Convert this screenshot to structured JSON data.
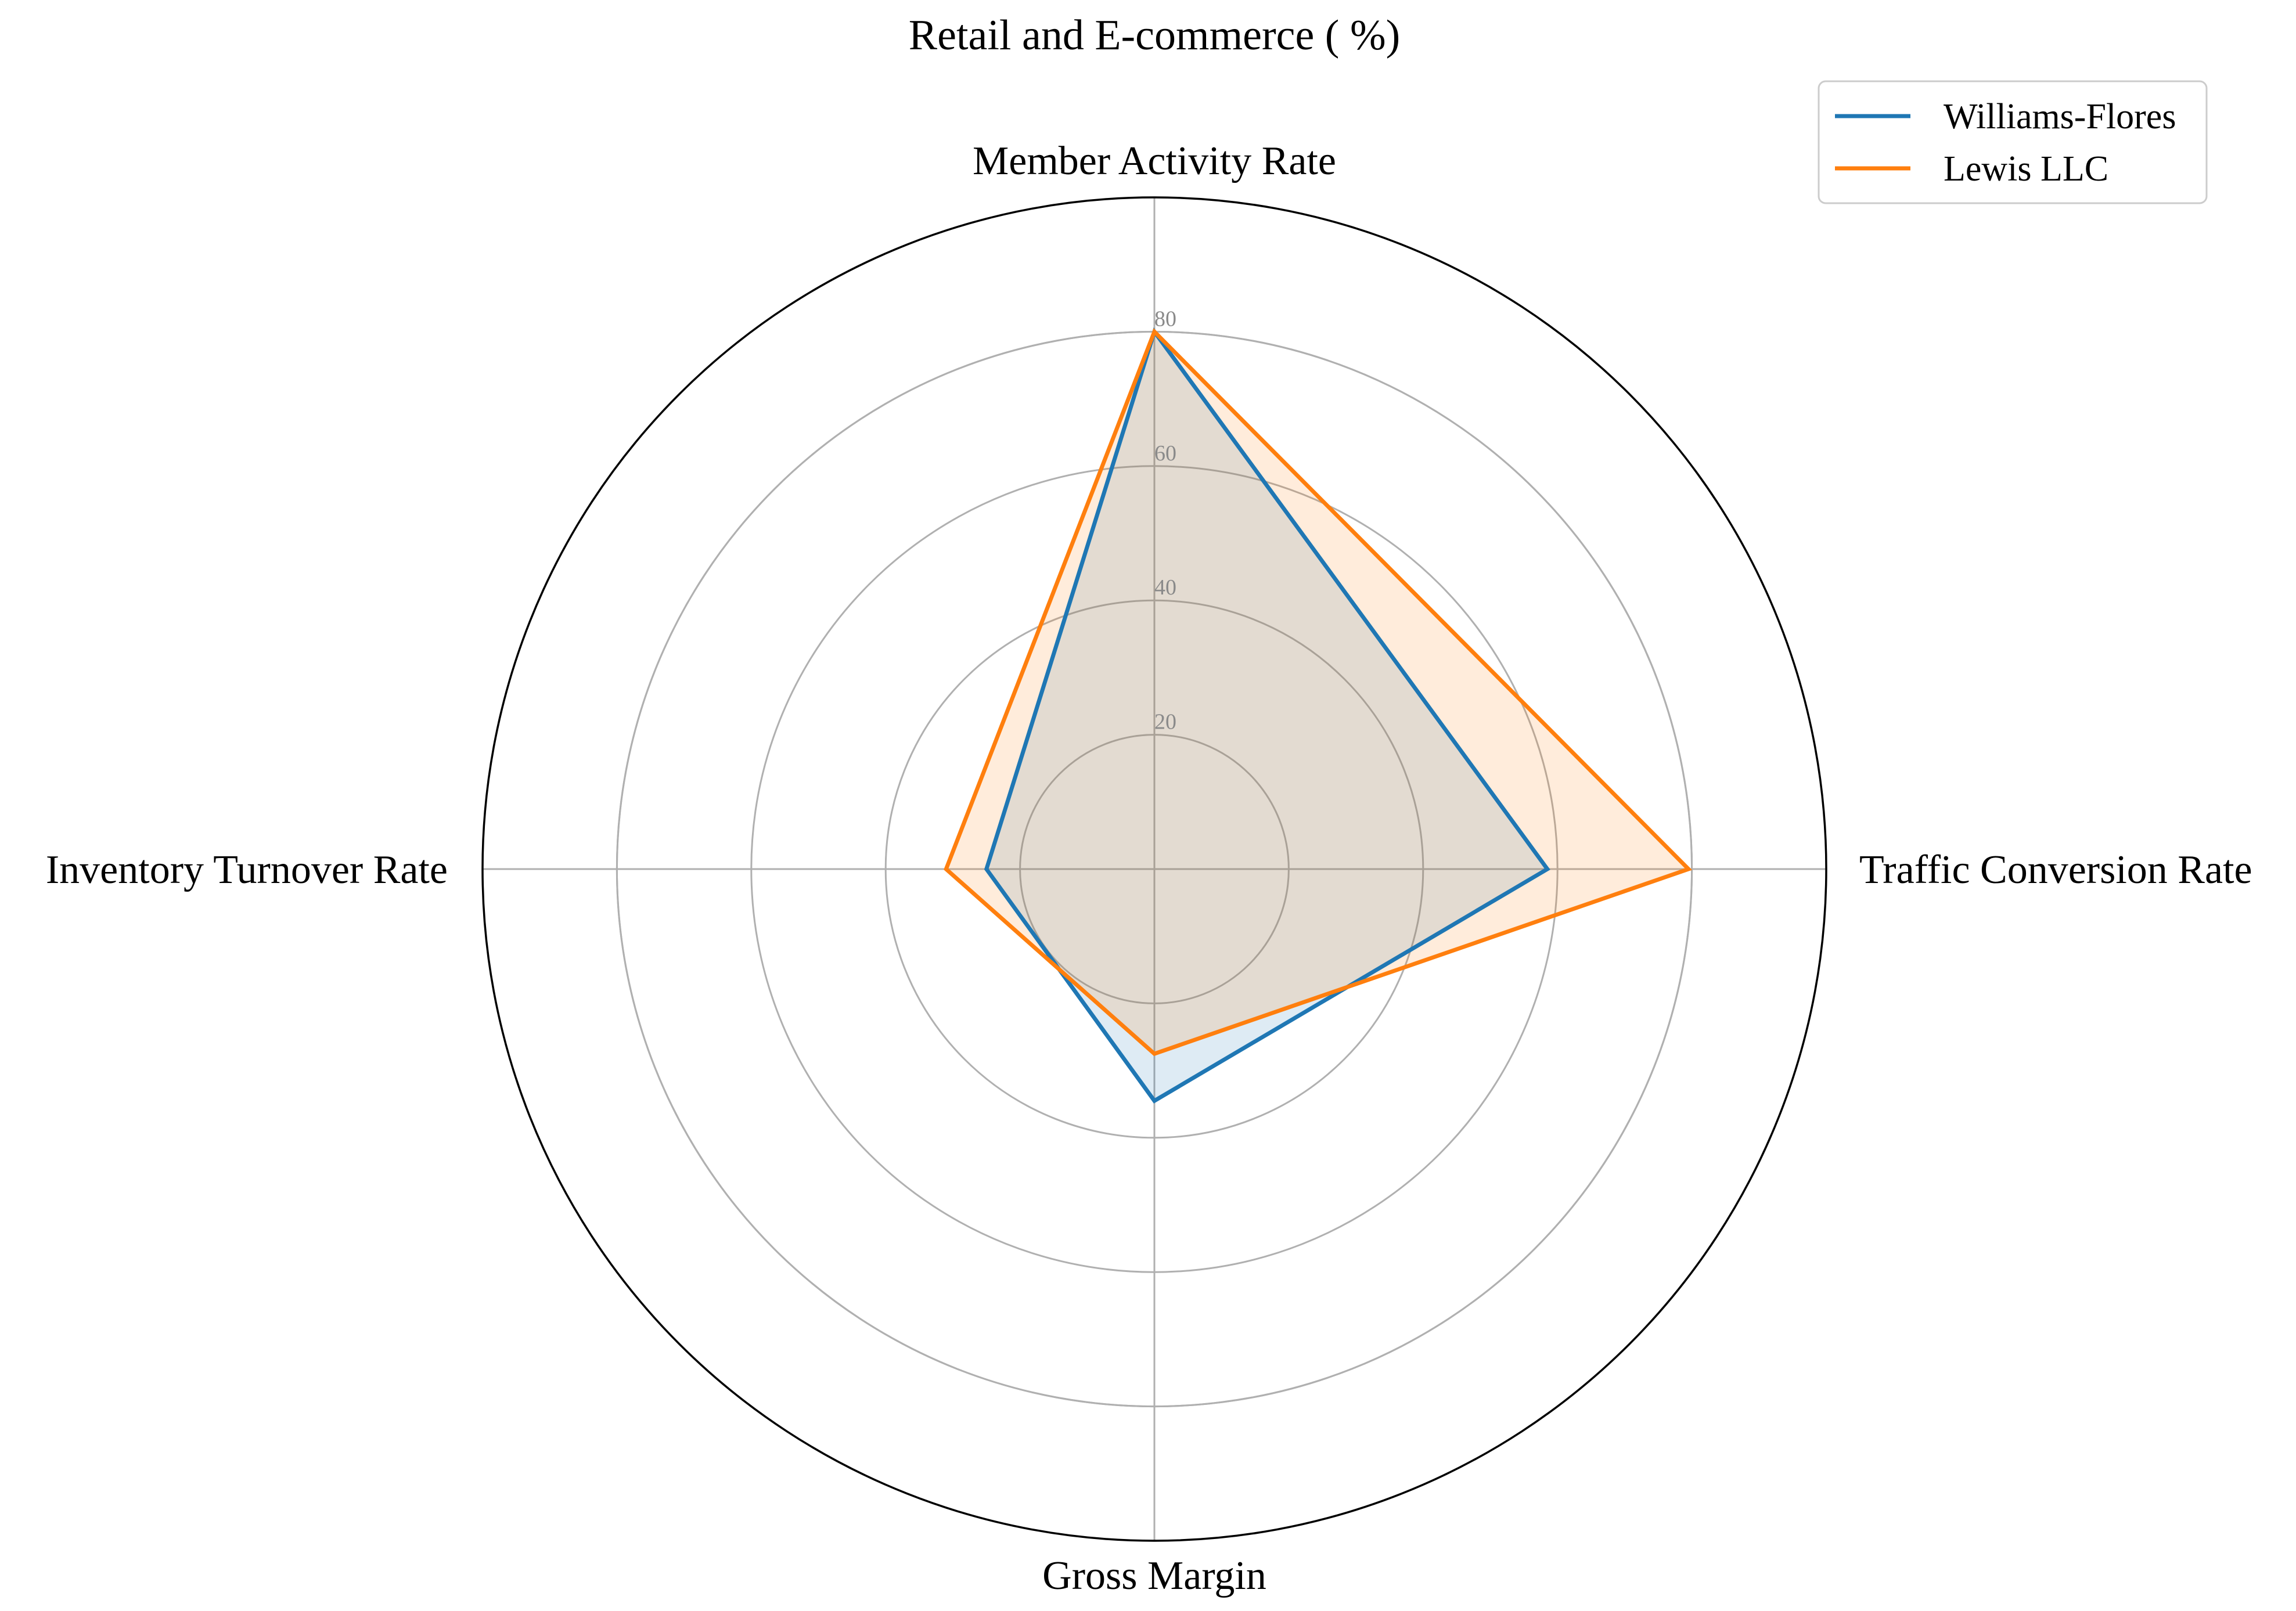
{
  "chart_data": {
    "type": "radar",
    "title": "Retail and E-commerce ( %)",
    "categories": [
      "Member Activity Rate",
      "Traffic Conversion Rate",
      "Gross Margin",
      "Inventory Turnover Rate"
    ],
    "series": [
      {
        "name": "Williams-Flores",
        "values": [
          80,
          58.5,
          34.5,
          25
        ],
        "color": "#1f77b4"
      },
      {
        "name": "Lewis LLC",
        "values": [
          80,
          79.5,
          27.5,
          31
        ],
        "color": "#ff7f0e"
      }
    ],
    "radial_ticks": [
      20,
      40,
      60,
      80
    ],
    "rlim": [
      0,
      100
    ],
    "grid": true,
    "legend_position": "top-right"
  }
}
